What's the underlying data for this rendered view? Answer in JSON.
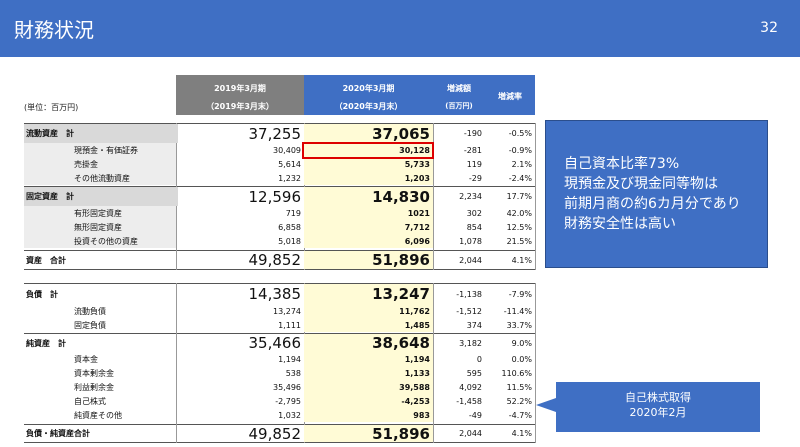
{
  "header": {
    "title": "財務状況",
    "page_number": "32"
  },
  "unit": "(単位：百万円)",
  "columns": {
    "c2019_line1": "2019年3月期",
    "c2019_line2": "（2019年3月末）",
    "c2020_line1": "2020年3月期",
    "c2020_line2": "（2020年3月末）",
    "diff_line1": "増減額",
    "diff_line2": "(百万円)",
    "rate": "増減率"
  },
  "rows": [
    {
      "label": "流動資産　計",
      "v2019": "37,255",
      "v2020": "37,065",
      "diff": "-190",
      "rate": "-0.5%"
    },
    {
      "label": "現預金・有価証券",
      "v2019": "30,409",
      "v2020": "30,128",
      "diff": "-281",
      "rate": "-0.9%"
    },
    {
      "label": "売掛金",
      "v2019": "5,614",
      "v2020": "5,733",
      "diff": "119",
      "rate": "2.1%"
    },
    {
      "label": "その他流動資産",
      "v2019": "1,232",
      "v2020": "1,203",
      "diff": "-29",
      "rate": "-2.4%"
    },
    {
      "label": "固定資産　計",
      "v2019": "12,596",
      "v2020": "14,830",
      "diff": "2,234",
      "rate": "17.7%"
    },
    {
      "label": "有形固定資産",
      "v2019": "719",
      "v2020": "1021",
      "diff": "302",
      "rate": "42.0%"
    },
    {
      "label": "無形固定資産",
      "v2019": "6,858",
      "v2020": "7,712",
      "diff": "854",
      "rate": "12.5%"
    },
    {
      "label": "投資その他の資産",
      "v2019": "5,018",
      "v2020": "6,096",
      "diff": "1,078",
      "rate": "21.5%"
    },
    {
      "label": "資産　合計",
      "v2019": "49,852",
      "v2020": "51,896",
      "diff": "2,044",
      "rate": "4.1%"
    },
    {
      "label": "負債　計",
      "v2019": "14,385",
      "v2020": "13,247",
      "diff": "-1,138",
      "rate": "-7.9%"
    },
    {
      "label": "流動負債",
      "v2019": "13,274",
      "v2020": "11,762",
      "diff": "-1,512",
      "rate": "-11.4%"
    },
    {
      "label": "固定負債",
      "v2019": "1,111",
      "v2020": "1,485",
      "diff": "374",
      "rate": "33.7%"
    },
    {
      "label": "純資産　計",
      "v2019": "35,466",
      "v2020": "38,648",
      "diff": "3,182",
      "rate": "9.0%"
    },
    {
      "label": "資本金",
      "v2019": "1,194",
      "v2020": "1,194",
      "diff": "0",
      "rate": "0.0%"
    },
    {
      "label": "資本剰余金",
      "v2019": "538",
      "v2020": "1,133",
      "diff": "595",
      "rate": "110.6%"
    },
    {
      "label": "利益剰余金",
      "v2019": "35,496",
      "v2020": "39,588",
      "diff": "4,092",
      "rate": "11.5%"
    },
    {
      "label": "自己株式",
      "v2019": "-2,795",
      "v2020": "-4,253",
      "diff": "-1,458",
      "rate": "52.2%"
    },
    {
      "label": "純資産その他",
      "v2019": "1,032",
      "v2020": "983",
      "diff": "-49",
      "rate": "-4.7%"
    },
    {
      "label": "負債・純資産合計",
      "v2019": "49,852",
      "v2020": "51,896",
      "diff": "2,044",
      "rate": "4.1%"
    }
  ],
  "callout_main": {
    "line1": "自己資本比率73%",
    "line2": "現預金及び現金同等物は",
    "line3": "前期月商の約6カ月分であり",
    "line4": "財務安全性は高い"
  },
  "callout_treasury": {
    "line1": "自己株式取得",
    "line2": "2020年2月"
  },
  "colors": {
    "header_blue": "#3f6fc4",
    "highlight_yellow": "#fffbd6",
    "highlight_red_box": "#dd0000",
    "header_gray": "#7f7f7f"
  }
}
